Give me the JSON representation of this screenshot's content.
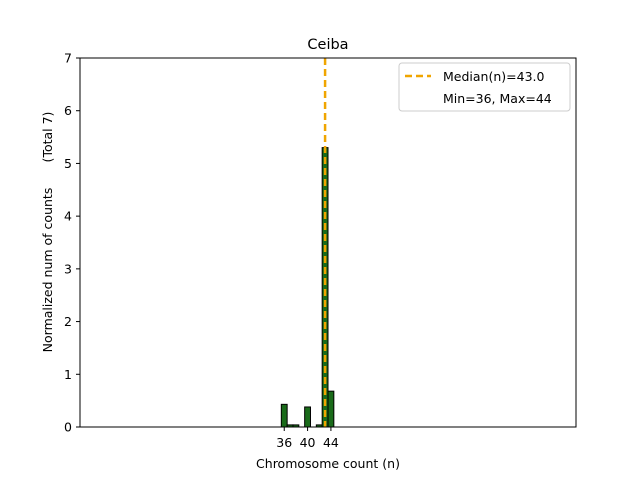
{
  "chart_data": {
    "type": "bar",
    "title": "Ceiba",
    "xlabel": "Chromosome count (n)",
    "ylabel": "Normalized num of counts",
    "ylabel_note": "(Total 7)",
    "xlim": [
      1,
      86
    ],
    "ylim": [
      0,
      7
    ],
    "yticks": [
      0,
      1,
      2,
      3,
      4,
      5,
      6,
      7
    ],
    "xticks": [
      36,
      40,
      44
    ],
    "grid": false,
    "legend_position": "top-right",
    "bar_color": "#1a6b1a",
    "bar_edge_color": "#000000",
    "median_color": "#f0a500",
    "x": [
      36,
      37,
      38,
      40,
      42,
      43,
      44
    ],
    "values": [
      0.43,
      0.04,
      0.04,
      0.38,
      0.04,
      5.3,
      0.68
    ],
    "median": 43.0,
    "legend": [
      {
        "label": "Median(n)=43.0",
        "style": "dashed-line"
      },
      {
        "label": "Min=36, Max=44",
        "style": "none"
      }
    ]
  }
}
